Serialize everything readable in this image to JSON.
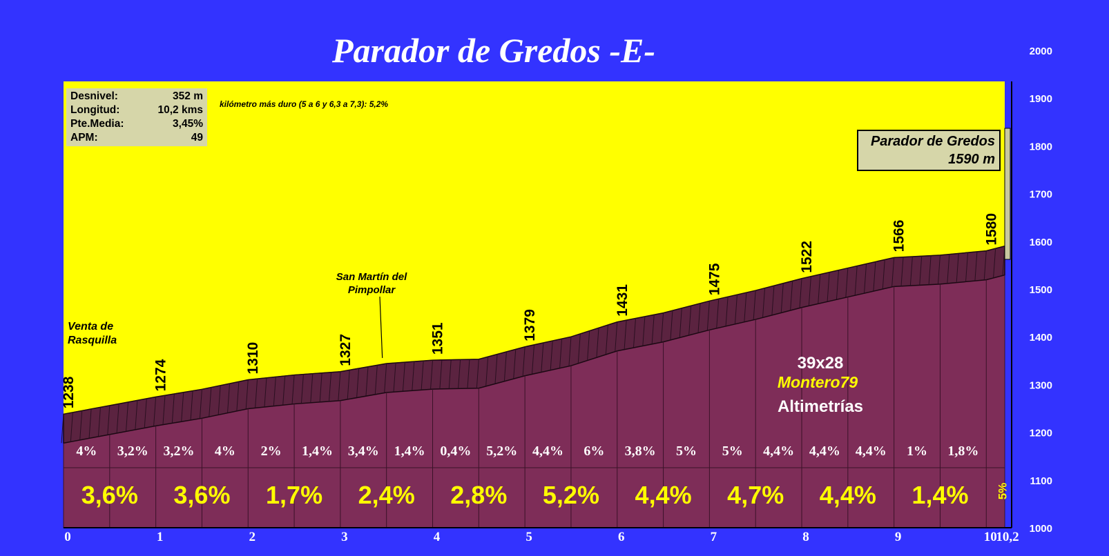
{
  "title": "Parador de Gredos -E-",
  "stats": [
    {
      "label": "Desnivel:",
      "value": "352 m"
    },
    {
      "label": "Longitud:",
      "value": "10,2 kms"
    },
    {
      "label": "Pte.Media:",
      "value": "3,45%"
    },
    {
      "label": "APM:",
      "value": "49"
    }
  ],
  "hardest_km": "kilómetro más duro (5 a 6 y 6,3 a 7,3):   5,2%",
  "summit": {
    "name": "Parador de Gredos",
    "altitude": "1590 m"
  },
  "places": [
    {
      "name_lines": [
        "Venta de",
        "Rasquilla"
      ],
      "km": 0
    },
    {
      "name_lines": [
        "San Martín del",
        "Pimpollar"
      ],
      "km": 3.5
    }
  ],
  "credits": {
    "size": "39x28",
    "author": "Montero79",
    "site": "Altimetrías"
  },
  "colors": {
    "background": "#3333ff",
    "sky": "#ffff00",
    "profile_fill": "#7e2d58",
    "profile_band": "#5b2340",
    "percent_big": "#ffff00",
    "percent_small": "#ffffff",
    "axis_text": "#ffffff"
  },
  "chart_data": {
    "type": "area",
    "xlabel": "",
    "ylabel": "",
    "xlim": [
      0,
      10.2
    ],
    "ylim": [
      1000,
      2000
    ],
    "x_ticks": [
      0,
      1,
      2,
      3,
      4,
      5,
      6,
      7,
      8,
      9,
      10,
      10.2
    ],
    "x_tick_labels": [
      "0",
      "1",
      "2",
      "3",
      "4",
      "5",
      "6",
      "7",
      "8",
      "9",
      "10",
      "10,2"
    ],
    "y_ticks": [
      1000,
      1100,
      1200,
      1300,
      1400,
      1500,
      1600,
      1700,
      1800,
      1900,
      2000
    ],
    "profile": {
      "x": [
        0,
        0.5,
        1,
        1.5,
        2,
        2.5,
        3,
        3.5,
        4,
        4.5,
        5,
        5.5,
        6,
        6.5,
        7,
        7.5,
        8,
        8.5,
        9,
        9.5,
        10,
        10.2
      ],
      "y": [
        1238,
        1256,
        1274,
        1290,
        1310,
        1320,
        1327,
        1344,
        1351,
        1353,
        1379,
        1400,
        1431,
        1450,
        1475,
        1497,
        1522,
        1544,
        1566,
        1571,
        1580,
        1590
      ]
    },
    "altitude_labels": [
      {
        "km": 0,
        "value": "1238"
      },
      {
        "km": 1,
        "value": "1274"
      },
      {
        "km": 2,
        "value": "1310"
      },
      {
        "km": 3,
        "value": "1327"
      },
      {
        "km": 4,
        "value": "1351"
      },
      {
        "km": 5,
        "value": "1379"
      },
      {
        "km": 6,
        "value": "1431"
      },
      {
        "km": 7,
        "value": "1475"
      },
      {
        "km": 8,
        "value": "1522"
      },
      {
        "km": 9,
        "value": "1566"
      },
      {
        "km": 10,
        "value": "1580"
      }
    ],
    "half_km_gradients": [
      "4%",
      "3,2%",
      "3,2%",
      "4%",
      "2%",
      "1,4%",
      "3,4%",
      "1,4%",
      "0,4%",
      "5,2%",
      "4,4%",
      "6%",
      "3,8%",
      "5%",
      "5%",
      "4,4%",
      "4,4%",
      "4,4%",
      "1%",
      "1,8%"
    ],
    "km_gradients": [
      "3,6%",
      "3,6%",
      "1,7%",
      "2,4%",
      "2,8%",
      "5,2%",
      "4,4%",
      "4,7%",
      "4,4%",
      "1,4%",
      "5%"
    ]
  }
}
